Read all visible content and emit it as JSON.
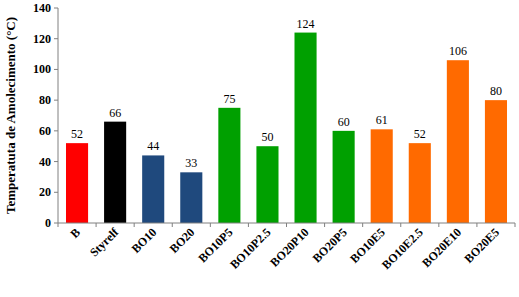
{
  "chart_data": {
    "type": "bar",
    "y_label": "Temperatuta de Amolecimento (°C)",
    "categories": [
      "B",
      "Styrelf",
      "BO10",
      "BO20",
      "BO10P5",
      "BO10P2.5",
      "BO20P10",
      "BO20P5",
      "BO10E5",
      "BO10E2.5",
      "BO20E10",
      "BO20E5"
    ],
    "values": [
      52,
      66,
      44,
      33,
      75,
      50,
      124,
      60,
      61,
      52,
      106,
      80
    ],
    "colors": [
      "#ff0000",
      "#000000",
      "#1f497d",
      "#1f497d",
      "#00a000",
      "#00a000",
      "#00a000",
      "#00a000",
      "#ff6a00",
      "#ff6a00",
      "#ff6a00",
      "#ff6a00"
    ],
    "ylim": [
      0,
      140
    ],
    "yticks": [
      0,
      20,
      40,
      60,
      80,
      100,
      120,
      140
    ],
    "grid": false,
    "data_labels": true
  }
}
